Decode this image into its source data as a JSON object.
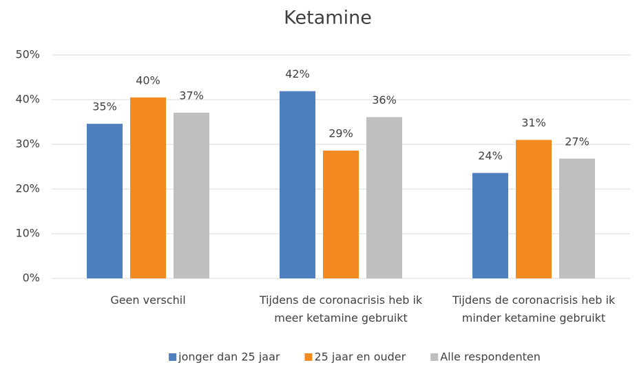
{
  "chart_data": {
    "type": "bar",
    "title": "Ketamine",
    "categories": [
      "Geen verschil",
      "Tijdens de coronacrisis heb ik meer ketamine gebruikt",
      "Tijdens de coronacrisis heb ik minder ketamine gebruikt"
    ],
    "series": [
      {
        "name": "jonger dan 25 jaar",
        "color": "#4e7fbf",
        "values": [
          34.6,
          41.9,
          23.6
        ],
        "value_labels": [
          "35%",
          "42%",
          "24%"
        ]
      },
      {
        "name": "25 jaar en ouder",
        "color": "#f28a21",
        "values": [
          40.5,
          28.6,
          31.0
        ],
        "value_labels": [
          "40%",
          "29%",
          "31%"
        ]
      },
      {
        "name": "Alle respondenten",
        "color": "#bfbfbf",
        "values": [
          37.1,
          36.1,
          26.8
        ],
        "value_labels": [
          "37%",
          "36%",
          "27%"
        ]
      }
    ],
    "ylim": [
      0,
      50
    ],
    "yticks": [
      {
        "value": 0,
        "label": "0%"
      },
      {
        "value": 10,
        "label": "10%"
      },
      {
        "value": 20,
        "label": "20%"
      },
      {
        "value": 30,
        "label": "30%"
      },
      {
        "value": 40,
        "label": "40%"
      },
      {
        "value": 50,
        "label": "50%"
      }
    ],
    "grid": true,
    "legend": "bottom"
  }
}
